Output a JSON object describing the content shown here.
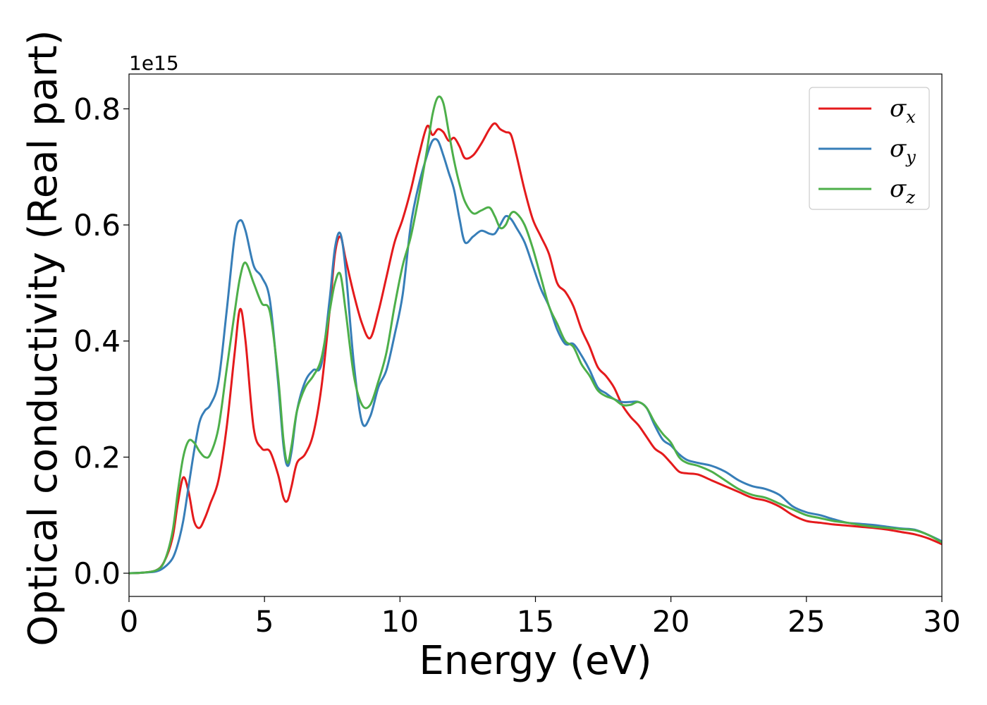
{
  "chart_data": {
    "type": "line",
    "xlabel": "Energy (eV)",
    "ylabel": "Optical conductivity (Real part)",
    "y_offset_label": "1e15",
    "y_scale_factor": 1000000000000000.0,
    "xlim": [
      0,
      30
    ],
    "ylim": [
      -0.04,
      0.86
    ],
    "x_ticks": [
      0,
      5,
      10,
      15,
      20,
      25,
      30
    ],
    "x_tick_labels": [
      "0",
      "5",
      "10",
      "15",
      "20",
      "25",
      "30"
    ],
    "y_ticks": [
      0.0,
      0.2,
      0.4,
      0.6,
      0.8
    ],
    "y_tick_labels": [
      "0.0",
      "0.2",
      "0.4",
      "0.6",
      "0.8"
    ],
    "grid": false,
    "legend_position": "top-right",
    "series": [
      {
        "name": "σx",
        "symbol": "σ",
        "subscript": "x",
        "color": "#e41a1c",
        "x": [
          0,
          0.5,
          1.0,
          1.3,
          1.6,
          1.8,
          2.0,
          2.2,
          2.4,
          2.6,
          2.8,
          3.0,
          3.3,
          3.6,
          3.9,
          4.1,
          4.3,
          4.6,
          4.9,
          5.2,
          5.5,
          5.7,
          5.85,
          6.0,
          6.2,
          6.5,
          6.8,
          7.1,
          7.4,
          7.6,
          7.8,
          8.0,
          8.3,
          8.6,
          8.9,
          9.2,
          9.5,
          9.8,
          10.1,
          10.4,
          10.7,
          11.0,
          11.2,
          11.4,
          11.6,
          11.8,
          12.0,
          12.2,
          12.4,
          12.7,
          13.0,
          13.3,
          13.5,
          13.7,
          13.9,
          14.1,
          14.3,
          14.6,
          14.9,
          15.2,
          15.5,
          15.8,
          16.1,
          16.4,
          16.7,
          17.0,
          17.3,
          17.6,
          17.9,
          18.2,
          18.5,
          18.8,
          19.1,
          19.4,
          19.7,
          20.0,
          20.3,
          20.6,
          21.0,
          21.5,
          22.0,
          22.5,
          23.0,
          23.5,
          24.0,
          24.5,
          25.0,
          25.5,
          26.0,
          26.5,
          27.0,
          27.5,
          28.0,
          28.5,
          29.0,
          29.5,
          30.0
        ],
        "values": [
          0.0,
          0.001,
          0.005,
          0.02,
          0.06,
          0.12,
          0.165,
          0.14,
          0.09,
          0.078,
          0.095,
          0.12,
          0.16,
          0.25,
          0.38,
          0.455,
          0.4,
          0.25,
          0.215,
          0.21,
          0.17,
          0.13,
          0.125,
          0.15,
          0.19,
          0.205,
          0.24,
          0.32,
          0.45,
          0.55,
          0.58,
          0.54,
          0.48,
          0.43,
          0.405,
          0.45,
          0.51,
          0.57,
          0.61,
          0.66,
          0.72,
          0.77,
          0.755,
          0.765,
          0.76,
          0.745,
          0.75,
          0.735,
          0.715,
          0.72,
          0.74,
          0.765,
          0.775,
          0.765,
          0.76,
          0.755,
          0.72,
          0.66,
          0.61,
          0.58,
          0.55,
          0.5,
          0.485,
          0.46,
          0.42,
          0.39,
          0.355,
          0.34,
          0.32,
          0.29,
          0.27,
          0.255,
          0.235,
          0.215,
          0.205,
          0.19,
          0.175,
          0.172,
          0.17,
          0.16,
          0.15,
          0.14,
          0.13,
          0.125,
          0.115,
          0.1,
          0.09,
          0.087,
          0.084,
          0.082,
          0.08,
          0.078,
          0.075,
          0.071,
          0.067,
          0.06,
          0.05
        ]
      },
      {
        "name": "σy",
        "symbol": "σ",
        "subscript": "y",
        "color": "#377eb8",
        "x": [
          0,
          0.5,
          1.0,
          1.3,
          1.6,
          1.8,
          2.0,
          2.2,
          2.4,
          2.6,
          2.8,
          3.0,
          3.3,
          3.6,
          3.9,
          4.1,
          4.3,
          4.6,
          4.9,
          5.2,
          5.5,
          5.7,
          5.85,
          6.0,
          6.2,
          6.5,
          6.8,
          7.1,
          7.4,
          7.6,
          7.8,
          8.0,
          8.3,
          8.6,
          8.9,
          9.2,
          9.5,
          9.8,
          10.1,
          10.4,
          10.7,
          11.0,
          11.2,
          11.4,
          11.6,
          11.8,
          12.0,
          12.2,
          12.4,
          12.7,
          13.0,
          13.3,
          13.5,
          13.7,
          13.9,
          14.1,
          14.3,
          14.6,
          14.9,
          15.2,
          15.5,
          15.8,
          16.1,
          16.4,
          16.7,
          17.0,
          17.3,
          17.6,
          17.9,
          18.2,
          18.5,
          18.8,
          19.1,
          19.4,
          19.7,
          20.0,
          20.3,
          20.6,
          21.0,
          21.5,
          22.0,
          22.5,
          23.0,
          23.5,
          24.0,
          24.5,
          25.0,
          25.5,
          26.0,
          26.5,
          27.0,
          27.5,
          28.0,
          28.5,
          29.0,
          29.5,
          30.0
        ],
        "values": [
          0.0,
          0.001,
          0.003,
          0.01,
          0.025,
          0.05,
          0.09,
          0.15,
          0.21,
          0.26,
          0.28,
          0.29,
          0.33,
          0.45,
          0.58,
          0.608,
          0.59,
          0.53,
          0.51,
          0.47,
          0.33,
          0.22,
          0.185,
          0.21,
          0.28,
          0.33,
          0.35,
          0.36,
          0.47,
          0.56,
          0.585,
          0.52,
          0.36,
          0.26,
          0.27,
          0.32,
          0.35,
          0.41,
          0.48,
          0.6,
          0.67,
          0.72,
          0.745,
          0.745,
          0.72,
          0.69,
          0.66,
          0.61,
          0.57,
          0.58,
          0.59,
          0.585,
          0.585,
          0.6,
          0.615,
          0.61,
          0.595,
          0.57,
          0.53,
          0.49,
          0.46,
          0.42,
          0.395,
          0.395,
          0.375,
          0.35,
          0.32,
          0.31,
          0.3,
          0.295,
          0.295,
          0.295,
          0.285,
          0.255,
          0.23,
          0.22,
          0.205,
          0.195,
          0.19,
          0.185,
          0.175,
          0.16,
          0.15,
          0.145,
          0.135,
          0.115,
          0.105,
          0.1,
          0.093,
          0.087,
          0.085,
          0.083,
          0.08,
          0.077,
          0.075,
          0.066,
          0.055
        ]
      },
      {
        "name": "σz",
        "symbol": "σ",
        "subscript": "z",
        "color": "#4daf4a",
        "x": [
          0,
          0.5,
          1.0,
          1.3,
          1.6,
          1.8,
          2.0,
          2.2,
          2.4,
          2.6,
          2.8,
          3.0,
          3.3,
          3.6,
          3.9,
          4.1,
          4.3,
          4.6,
          4.9,
          5.2,
          5.5,
          5.7,
          5.85,
          6.0,
          6.2,
          6.5,
          6.8,
          7.1,
          7.4,
          7.6,
          7.8,
          8.0,
          8.3,
          8.6,
          8.9,
          9.2,
          9.5,
          9.8,
          10.1,
          10.4,
          10.7,
          11.0,
          11.2,
          11.4,
          11.6,
          11.8,
          12.0,
          12.2,
          12.4,
          12.7,
          13.0,
          13.3,
          13.5,
          13.7,
          13.9,
          14.1,
          14.3,
          14.6,
          14.9,
          15.2,
          15.5,
          15.8,
          16.1,
          16.4,
          16.7,
          17.0,
          17.3,
          17.6,
          17.9,
          18.2,
          18.5,
          18.8,
          19.1,
          19.4,
          19.7,
          20.0,
          20.3,
          20.6,
          21.0,
          21.5,
          22.0,
          22.5,
          23.0,
          23.5,
          24.0,
          24.5,
          25.0,
          25.5,
          26.0,
          26.5,
          27.0,
          27.5,
          28.0,
          28.5,
          29.0,
          29.5,
          30.0
        ],
        "values": [
          0.0,
          0.001,
          0.005,
          0.02,
          0.07,
          0.14,
          0.2,
          0.228,
          0.225,
          0.21,
          0.2,
          0.205,
          0.25,
          0.35,
          0.45,
          0.51,
          0.535,
          0.5,
          0.465,
          0.45,
          0.34,
          0.23,
          0.19,
          0.22,
          0.28,
          0.32,
          0.34,
          0.37,
          0.45,
          0.5,
          0.515,
          0.45,
          0.34,
          0.29,
          0.29,
          0.33,
          0.38,
          0.46,
          0.53,
          0.58,
          0.65,
          0.73,
          0.79,
          0.82,
          0.81,
          0.76,
          0.71,
          0.67,
          0.64,
          0.62,
          0.625,
          0.63,
          0.615,
          0.595,
          0.6,
          0.62,
          0.62,
          0.6,
          0.56,
          0.51,
          0.46,
          0.43,
          0.4,
          0.39,
          0.36,
          0.34,
          0.315,
          0.305,
          0.3,
          0.29,
          0.29,
          0.295,
          0.285,
          0.26,
          0.24,
          0.225,
          0.2,
          0.19,
          0.185,
          0.175,
          0.16,
          0.145,
          0.135,
          0.13,
          0.12,
          0.11,
          0.1,
          0.095,
          0.09,
          0.087,
          0.083,
          0.08,
          0.078,
          0.076,
          0.074,
          0.066,
          0.053
        ]
      }
    ]
  }
}
